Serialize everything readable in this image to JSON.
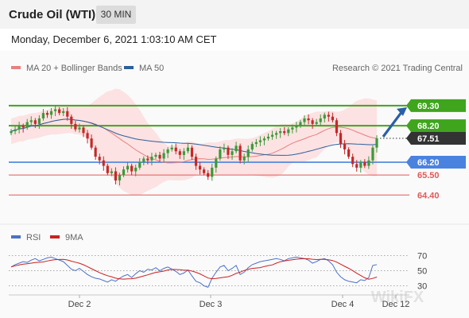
{
  "header": {
    "title": "Crude Oil (WTI)",
    "timeframe": "30 MIN"
  },
  "subtitle": "Monday, December 6, 2021 1:03:10 AM CET",
  "credit": "Research © 2021 Trading Central",
  "watermark": "WikiFX",
  "colors": {
    "up": "#3a9a3a",
    "down": "#c62828",
    "bollinger_band": "#fcdada",
    "ma20": "#e88080",
    "ma50": "#2c5f9e",
    "resistance": "#3fa51d",
    "support": "#4a82e0",
    "support_minor": "#e05a5a",
    "current_price": "#333333",
    "rsi": "#4a72c8",
    "rsi_ma": "#cc2020",
    "arrow": "#2a5fa8"
  },
  "chart_data": [
    {
      "type": "candlestick",
      "legend": [
        {
          "name": "MA 20 + Bollinger Bands",
          "color": "#e88080"
        },
        {
          "name": "MA 50",
          "color": "#2c5f9e"
        }
      ],
      "x_ticks": [
        "Dec 2",
        "Dec 3",
        "Dec 4",
        "Dec 12"
      ],
      "ylim": [
        62.8,
        70.3
      ],
      "levels": [
        {
          "value": 69.3,
          "label": "69.30",
          "kind": "resistance"
        },
        {
          "value": 68.2,
          "label": "68.20",
          "kind": "resistance"
        },
        {
          "value": 67.51,
          "label": "67.51",
          "kind": "current"
        },
        {
          "value": 66.2,
          "label": "66.20",
          "kind": "support"
        },
        {
          "value": 65.5,
          "label": "65.50",
          "kind": "support_minor"
        },
        {
          "value": 64.4,
          "label": "64.40",
          "kind": "support_minor"
        }
      ],
      "closes": [
        67.9,
        68.0,
        68.2,
        68.1,
        68.4,
        68.5,
        68.3,
        68.6,
        68.9,
        68.8,
        69.0,
        69.1,
        68.9,
        69.0,
        68.7,
        68.3,
        68.0,
        68.1,
        67.8,
        67.5,
        67.0,
        66.5,
        66.3,
        66.0,
        65.6,
        65.7,
        65.2,
        65.5,
        65.8,
        66.0,
        65.7,
        65.9,
        66.2,
        66.4,
        66.3,
        66.5,
        66.6,
        66.4,
        66.7,
        66.9,
        67.0,
        66.8,
        66.6,
        66.8,
        67.0,
        66.5,
        66.0,
        65.8,
        65.6,
        65.4,
        65.9,
        66.4,
        66.9,
        67.0,
        66.6,
        66.8,
        67.1,
        66.3,
        66.5,
        66.9,
        67.2,
        67.3,
        67.4,
        67.5,
        67.6,
        67.7,
        67.8,
        67.9,
        67.8,
        68.0,
        68.1,
        68.2,
        68.4,
        68.6,
        68.5,
        68.3,
        68.4,
        68.6,
        68.8,
        68.7,
        68.5,
        67.8,
        67.2,
        66.9,
        66.5,
        66.1,
        65.9,
        66.2,
        66.0,
        66.3,
        67.0,
        67.51
      ],
      "rsi_ylim": [
        20,
        80
      ],
      "rsi_levels": [
        70,
        50,
        30
      ],
      "rsi_labels": [
        "70",
        "50",
        "30"
      ],
      "rsi_legend": [
        {
          "name": "RSI",
          "color": "#4a72c8"
        },
        {
          "name": "9MA",
          "color": "#cc2020"
        }
      ],
      "rsi": [
        55,
        58,
        60,
        62,
        61,
        64,
        66,
        63,
        65,
        67,
        68,
        66,
        64,
        62,
        57,
        52,
        50,
        53,
        49,
        45,
        42,
        40,
        39,
        37,
        35,
        38,
        36,
        40,
        43,
        45,
        41,
        46,
        50,
        48,
        52,
        51,
        54,
        50,
        53,
        55,
        52,
        49,
        45,
        47,
        51,
        43,
        36,
        34,
        30,
        28,
        40,
        48,
        55,
        57,
        50,
        53,
        57,
        45,
        48,
        54,
        58,
        60,
        62,
        63,
        64,
        65,
        66,
        65,
        63,
        66,
        67,
        68,
        67,
        66,
        64,
        60,
        62,
        65,
        66,
        63,
        58,
        48,
        42,
        38,
        36,
        35,
        34,
        38,
        37,
        41,
        57,
        58
      ]
    }
  ]
}
